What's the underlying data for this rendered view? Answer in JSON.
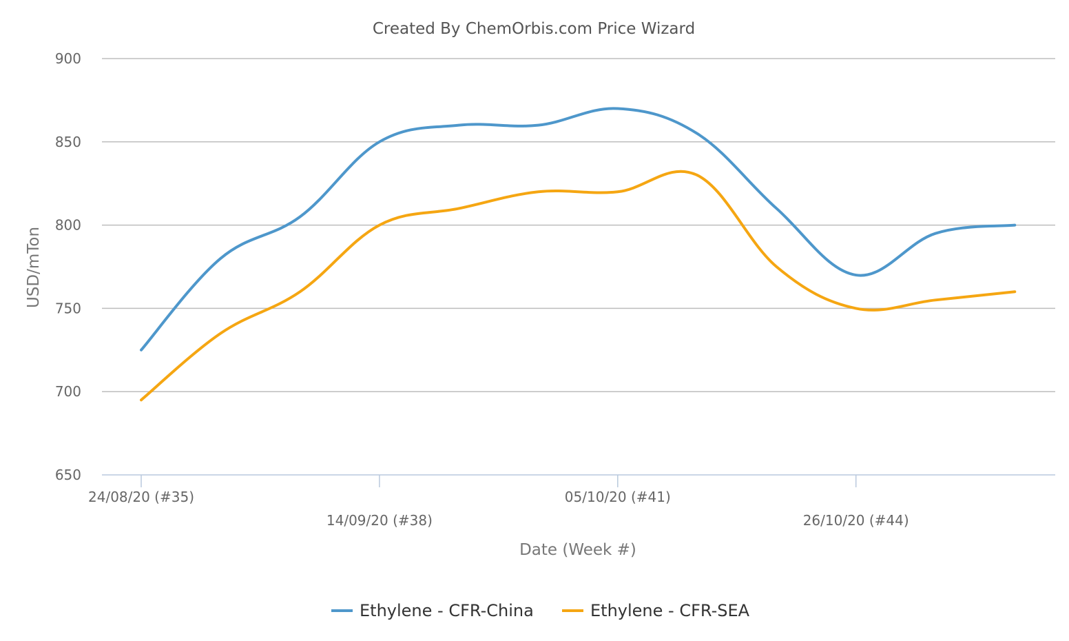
{
  "chart_data": {
    "type": "line",
    "title": "Created By ChemOrbis.com Price Wizard",
    "xlabel": "Date (Week #)",
    "ylabel": "USD/mTon",
    "ylim": [
      650,
      900
    ],
    "yticks": [
      650,
      700,
      750,
      800,
      850,
      900
    ],
    "x": [
      "24/08/20",
      "31/08/20",
      "07/09/20",
      "14/09/20",
      "21/09/20",
      "28/09/20",
      "05/10/20",
      "12/10/20",
      "19/10/20",
      "26/10/20",
      "02/11/20",
      "09/11/20"
    ],
    "xtick_labels": [
      {
        "index": 0,
        "label": "24/08/20 (#35)",
        "row": 1
      },
      {
        "index": 3,
        "label": "14/09/20 (#38)",
        "row": 2
      },
      {
        "index": 6,
        "label": "05/10/20 (#41)",
        "row": 1
      },
      {
        "index": 9,
        "label": "26/10/20 (#44)",
        "row": 2
      }
    ],
    "grid": true,
    "legend_position": "bottom-center",
    "series": [
      {
        "name": "Ethylene - CFR-China",
        "color": "#4e97cb",
        "values": [
          725,
          780,
          805,
          850,
          860,
          860,
          870,
          855,
          810,
          770,
          795,
          800
        ]
      },
      {
        "name": "Ethylene - CFR-SEA",
        "color": "#f5a612",
        "values": [
          695,
          735,
          760,
          800,
          810,
          820,
          820,
          830,
          775,
          750,
          755,
          760
        ]
      }
    ]
  }
}
